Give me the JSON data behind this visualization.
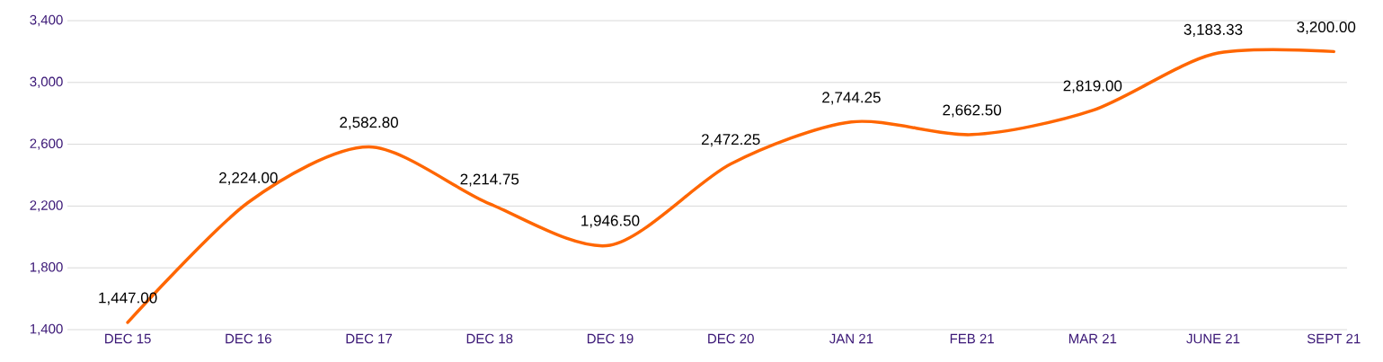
{
  "chart_data": {
    "type": "line",
    "categories": [
      "DEC 15",
      "DEC 16",
      "DEC 17",
      "DEC 18",
      "DEC 19",
      "DEC 20",
      "JAN 21",
      "FEB 21",
      "MAR 21",
      "JUNE 21",
      "SEPT 21"
    ],
    "series": [
      {
        "color": "#ff6600",
        "values": [
          1447.0,
          2224.0,
          2582.8,
          2214.75,
          1946.5,
          2472.25,
          2744.25,
          2662.5,
          2819.0,
          3183.33,
          3200.0
        ],
        "value_labels": [
          "1,447.00",
          "2,224.00",
          "2,582.80",
          "2,214.75",
          "1,946.50",
          "2,472.25",
          "2,744.25",
          "2,662.50",
          "2,819.00",
          "3,183.33",
          "3,200.00"
        ]
      }
    ],
    "ylim": [
      1400,
      3400
    ],
    "yticks": [
      {
        "value": 1400,
        "label": "1,400"
      },
      {
        "value": 1800,
        "label": "1,800"
      },
      {
        "value": 2200,
        "label": "2,200"
      },
      {
        "value": 2600,
        "label": "2,600"
      },
      {
        "value": 3000,
        "label": "3,000"
      },
      {
        "value": 3400,
        "label": "3,400"
      }
    ],
    "grid": "y",
    "marker": "none",
    "line_style": "solid"
  }
}
